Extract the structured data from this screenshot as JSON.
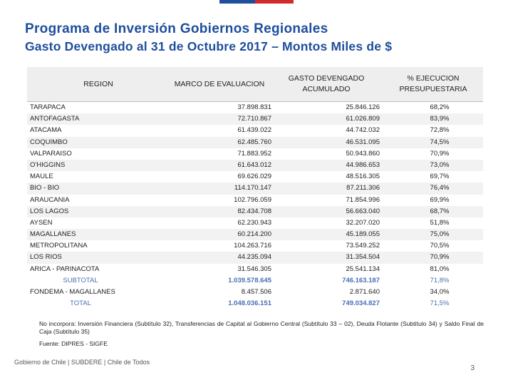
{
  "title": "Programa de Inversión Gobiernos Regionales",
  "subtitle": "Gasto Devengado al 31 de Octubre 2017 – Montos Miles de $",
  "table": {
    "headers": {
      "region": "REGION",
      "marco": "MARCO DE EVALUACION",
      "gasto": "GASTO DEVENGADO ACUMULADO",
      "pct": "% EJECUCION PRESUPUESTARIA"
    },
    "rows": [
      {
        "region": "TARAPACA",
        "marco": "37.898.831",
        "gasto": "25.846.126",
        "pct": "68,2%"
      },
      {
        "region": "ANTOFAGASTA",
        "marco": "72.710.867",
        "gasto": "61.026.809",
        "pct": "83,9%"
      },
      {
        "region": "ATACAMA",
        "marco": "61.439.022",
        "gasto": "44.742.032",
        "pct": "72,8%"
      },
      {
        "region": "COQUIMBO",
        "marco": "62.485.760",
        "gasto": "46.531.095",
        "pct": "74,5%"
      },
      {
        "region": "VALPARAISO",
        "marco": "71.883.952",
        "gasto": "50.943.860",
        "pct": "70,9%"
      },
      {
        "region": "O'HIGGINS",
        "marco": "61.643.012",
        "gasto": "44.986.653",
        "pct": "73,0%"
      },
      {
        "region": "MAULE",
        "marco": "69.626.029",
        "gasto": "48.516.305",
        "pct": "69,7%"
      },
      {
        "region": "BIO - BIO",
        "marco": "114.170.147",
        "gasto": "87.211.306",
        "pct": "76,4%"
      },
      {
        "region": "ARAUCANIA",
        "marco": "102.796.059",
        "gasto": "71.854.996",
        "pct": "69,9%"
      },
      {
        "region": "LOS LAGOS",
        "marco": "82.434.708",
        "gasto": "56.663.040",
        "pct": "68,7%"
      },
      {
        "region": "AYSEN",
        "marco": "62.230.943",
        "gasto": "32.207.020",
        "pct": "51,8%"
      },
      {
        "region": "MAGALLANES",
        "marco": "60.214.200",
        "gasto": "45.189.055",
        "pct": "75,0%"
      },
      {
        "region": "METROPOLITANA",
        "marco": "104.263.716",
        "gasto": "73.549.252",
        "pct": "70,5%"
      },
      {
        "region": "LOS RIOS",
        "marco": "44.235.094",
        "gasto": "31.354.504",
        "pct": "70,9%"
      },
      {
        "region": "ARICA - PARINACOTA",
        "marco": "31.546.305",
        "gasto": "25.541.134",
        "pct": "81,0%"
      },
      {
        "region": "SUBTOTAL",
        "marco": "1.039.578.645",
        "gasto": "746.163.187",
        "pct": "71,8%"
      },
      {
        "region": "FONDEMA - MAGALLANES",
        "marco": "8.457.506",
        "gasto": "2.871.640",
        "pct": "34,0%"
      },
      {
        "region": "TOTAL",
        "marco": "1.048.036.151",
        "gasto": "749.034.827",
        "pct": "71,5%"
      }
    ]
  },
  "note": "No incorpora: Inversión Financiera (Subtítulo 32), Transferencias de Capital al Gobierno Central (Subtítulo 33 – 02), Deuda Flotante (Subtítulo 34) y Saldo Final de Caja (Subtítulo 35)",
  "source": "Fuente: DIPRES - SIGFE",
  "footer": "Gobierno de Chile | SUBDERE | Chile de Todos",
  "page_number": "3",
  "colors": {
    "title": "#1f4e9c",
    "subtotal": "#4a6fb5",
    "flag_blue": "#1f4e9c",
    "flag_red": "#d22b2b"
  }
}
